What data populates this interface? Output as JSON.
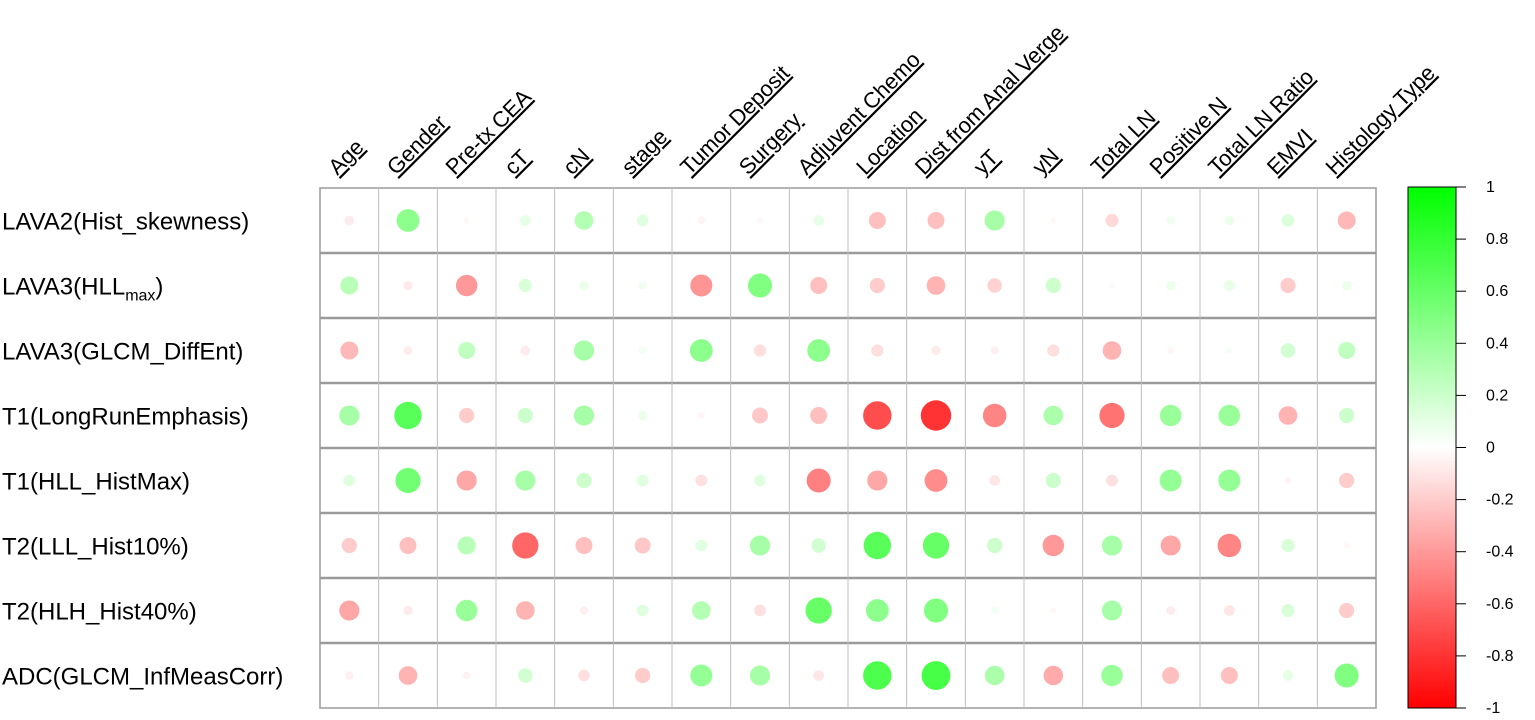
{
  "chart_data": {
    "type": "heatmap",
    "subtype": "circle-correlation-matrix",
    "columns": [
      "Age",
      "Gender",
      "Pre-tx CEA",
      "cT",
      "cN",
      "stage",
      "Tumor Deposit",
      "Surgery",
      "Adjuvent Chemo",
      "Location",
      "Dist from Anal Verge",
      "yT",
      "yN",
      "Total LN",
      "Positive N",
      "Total LN Ratio",
      "EMVI",
      "Histology Type"
    ],
    "rows": [
      {
        "label": "LAVA2(Hist_skewness)",
        "base": "LAVA2(Hist_skewness)",
        "sub": "",
        "tail": ""
      },
      {
        "label": "LAVA3(HLLmax)",
        "base": "LAVA3(HLL",
        "sub": "max",
        "tail": ")"
      },
      {
        "label": "LAVA3(GLCM_DiffEnt)",
        "base": "LAVA3(GLCM_DiffEnt)",
        "sub": "",
        "tail": ""
      },
      {
        "label": "T1(LongRunEmphasis)",
        "base": "T1(LongRunEmphasis)",
        "sub": "",
        "tail": ""
      },
      {
        "label": "T1(HLL_HistMax)",
        "base": "T1(HLL_HistMax)",
        "sub": "",
        "tail": ""
      },
      {
        "label": "T2(LLL_Hist10%)",
        "base": "T2(LLL_Hist10%)",
        "sub": "",
        "tail": ""
      },
      {
        "label": "T2(HLH_Hist40%)",
        "base": "T2(HLH_Hist40%)",
        "sub": "",
        "tail": ""
      },
      {
        "label": "ADC(GLCM_InfMeasCorr)",
        "base": "ADC(GLCM_InfMeasCorr)",
        "sub": "",
        "tail": ""
      }
    ],
    "values": [
      [
        -0.08,
        0.45,
        -0.03,
        0.1,
        0.3,
        0.12,
        -0.05,
        -0.03,
        0.1,
        -0.25,
        -0.25,
        0.35,
        -0.03,
        -0.15,
        0.06,
        0.08,
        0.14,
        -0.28
      ],
      [
        0.28,
        -0.08,
        -0.4,
        0.15,
        0.08,
        0.06,
        -0.42,
        0.5,
        -0.25,
        -0.2,
        -0.3,
        -0.18,
        0.2,
        -0.02,
        0.08,
        0.1,
        -0.2,
        0.08
      ],
      [
        -0.28,
        -0.07,
        0.25,
        -0.08,
        0.35,
        0.05,
        0.45,
        -0.13,
        0.45,
        -0.13,
        -0.08,
        -0.06,
        -0.13,
        -0.3,
        -0.04,
        0.04,
        0.18,
        0.25
      ],
      [
        0.35,
        0.65,
        -0.2,
        0.2,
        0.35,
        0.08,
        -0.04,
        -0.22,
        -0.25,
        -0.7,
        -0.8,
        -0.48,
        0.33,
        -0.55,
        0.4,
        0.4,
        -0.3,
        0.2
      ],
      [
        0.12,
        0.55,
        -0.35,
        0.35,
        0.2,
        0.12,
        -0.12,
        0.12,
        -0.5,
        -0.35,
        -0.45,
        -0.1,
        0.2,
        -0.12,
        0.42,
        0.42,
        -0.04,
        -0.2
      ],
      [
        -0.2,
        -0.25,
        0.28,
        -0.6,
        -0.25,
        -0.22,
        0.12,
        0.35,
        0.18,
        0.65,
        0.6,
        0.2,
        -0.4,
        0.35,
        -0.35,
        -0.48,
        0.15,
        -0.03
      ],
      [
        -0.35,
        -0.08,
        0.4,
        -0.3,
        -0.06,
        0.12,
        0.3,
        -0.12,
        0.6,
        0.45,
        0.5,
        0.05,
        -0.03,
        0.35,
        -0.07,
        -0.1,
        0.15,
        -0.2
      ],
      [
        -0.06,
        -0.3,
        -0.05,
        0.18,
        -0.12,
        -0.2,
        0.42,
        0.35,
        -0.1,
        0.7,
        0.72,
        0.33,
        -0.33,
        0.4,
        -0.25,
        -0.25,
        0.1,
        0.5
      ]
    ],
    "colorbar": {
      "range": [
        -1,
        1
      ],
      "ticks": [
        "1",
        "0.8",
        "0.6",
        "0.4",
        "0.2",
        "0",
        "-0.2",
        "-0.4",
        "-0.6",
        "-0.8",
        "-1"
      ],
      "tick_values": [
        1,
        0.8,
        0.6,
        0.4,
        0.2,
        0,
        -0.2,
        -0.4,
        -0.6,
        -0.8,
        -1
      ],
      "positive_color": "#00ff00",
      "neutral_color": "#ffffff",
      "negative_color": "#ff0000"
    },
    "title": "",
    "xlabel": "",
    "ylabel": "",
    "grid": true,
    "legend": "right"
  }
}
